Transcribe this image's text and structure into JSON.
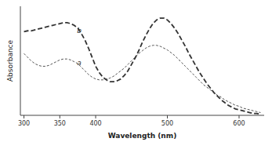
{
  "chart_data": {
    "type": "line",
    "xlabel": "Wavelength (nm)",
    "ylabel": "Absorbance",
    "x": [
      300,
      305,
      310,
      315,
      320,
      325,
      330,
      335,
      340,
      345,
      350,
      355,
      360,
      365,
      370,
      375,
      380,
      385,
      390,
      395,
      400,
      405,
      410,
      415,
      420,
      425,
      430,
      435,
      440,
      445,
      450,
      455,
      460,
      465,
      470,
      475,
      480,
      485,
      490,
      495,
      500,
      505,
      510,
      515,
      520,
      525,
      530,
      535,
      540,
      545,
      550,
      555,
      560,
      565,
      570,
      575,
      580,
      585,
      590,
      595,
      600,
      605,
      610,
      615,
      620,
      625,
      630
    ],
    "series": [
      {
        "color": "#555555",
        "line_style": "dashed",
        "values": [
          0.68,
          0.64,
          0.6,
          0.57,
          0.55,
          0.54,
          0.54,
          0.55,
          0.57,
          0.59,
          0.61,
          0.62,
          0.62,
          0.61,
          0.59,
          0.57,
          0.53,
          0.49,
          0.45,
          0.42,
          0.4,
          0.39,
          0.39,
          0.4,
          0.41,
          0.43,
          0.46,
          0.49,
          0.52,
          0.56,
          0.6,
          0.64,
          0.68,
          0.71,
          0.74,
          0.76,
          0.77,
          0.77,
          0.76,
          0.74,
          0.72,
          0.69,
          0.66,
          0.62,
          0.58,
          0.54,
          0.5,
          0.46,
          0.42,
          0.38,
          0.34,
          0.31,
          0.28,
          0.25,
          0.22,
          0.2,
          0.17,
          0.15,
          0.13,
          0.11,
          0.1,
          0.08,
          0.07,
          0.06,
          0.05,
          0.04,
          0.03
        ]
      },
      {
        "color": "#333333",
        "line_style": "dashed",
        "values": [
          0.92,
          0.93,
          0.93,
          0.94,
          0.95,
          0.96,
          0.97,
          0.98,
          0.99,
          1.0,
          1.01,
          1.02,
          1.02,
          1.01,
          0.99,
          0.96,
          0.9,
          0.83,
          0.74,
          0.64,
          0.54,
          0.47,
          0.42,
          0.39,
          0.37,
          0.37,
          0.38,
          0.4,
          0.44,
          0.49,
          0.56,
          0.63,
          0.71,
          0.8,
          0.88,
          0.95,
          1.01,
          1.05,
          1.07,
          1.07,
          1.05,
          1.01,
          0.96,
          0.9,
          0.83,
          0.76,
          0.68,
          0.61,
          0.54,
          0.47,
          0.41,
          0.35,
          0.3,
          0.25,
          0.21,
          0.17,
          0.14,
          0.11,
          0.09,
          0.07,
          0.06,
          0.05,
          0.04,
          0.03,
          0.02,
          0.02,
          0.01
        ]
      }
    ],
    "annotations": [
      {
        "x": 374,
        "y": 0.58,
        "text": "a"
      },
      {
        "x": 374,
        "y": 0.93,
        "text": "b"
      }
    ],
    "xlim": [
      295,
      635
    ],
    "xticks": [
      300,
      350,
      400,
      500,
      600
    ],
    "ylim": [
      0,
      1.2
    ],
    "yticks": [],
    "tick_labels": "x"
  }
}
